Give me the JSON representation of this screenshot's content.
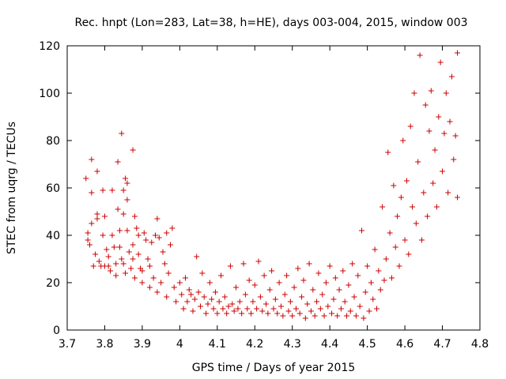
{
  "chart_data": {
    "type": "scatter",
    "title": "Rec. hnpt (Lon=283, Lat=38, h=HE), days 003-004, 2015, window 003",
    "xlabel": "GPS time / Days of year 2015",
    "ylabel": "STEC from uqrg / TECUs",
    "xlim": [
      3.7,
      4.8
    ],
    "ylim": [
      0,
      120
    ],
    "xticks": [
      "3.7",
      "3.8",
      "3.9",
      "4",
      "4.1",
      "4.2",
      "4.3",
      "4.4",
      "4.5",
      "4.6",
      "4.7",
      "4.8"
    ],
    "yticks": [
      "0",
      "20",
      "40",
      "60",
      "80",
      "100",
      "120"
    ],
    "grid": false,
    "legend": "none",
    "marker": "plus",
    "color": "#cc0000",
    "series": [
      {
        "points": [
          [
            3.75,
            64
          ],
          [
            3.755,
            41
          ],
          [
            3.755,
            38
          ],
          [
            3.76,
            36
          ],
          [
            3.765,
            45
          ],
          [
            3.765,
            72
          ],
          [
            3.765,
            58
          ],
          [
            3.77,
            27
          ],
          [
            3.775,
            32
          ],
          [
            3.78,
            49
          ],
          [
            3.78,
            47
          ],
          [
            3.78,
            67
          ],
          [
            3.785,
            29
          ],
          [
            3.79,
            27
          ],
          [
            3.795,
            59
          ],
          [
            3.795,
            40
          ],
          [
            3.8,
            27
          ],
          [
            3.8,
            48
          ],
          [
            3.805,
            34
          ],
          [
            3.81,
            31
          ],
          [
            3.81,
            27
          ],
          [
            3.815,
            25
          ],
          [
            3.82,
            59
          ],
          [
            3.82,
            40
          ],
          [
            3.825,
            35
          ],
          [
            3.83,
            28
          ],
          [
            3.83,
            23
          ],
          [
            3.835,
            71
          ],
          [
            3.835,
            51
          ],
          [
            3.84,
            42
          ],
          [
            3.84,
            35
          ],
          [
            3.845,
            83
          ],
          [
            3.845,
            30
          ],
          [
            3.85,
            59
          ],
          [
            3.85,
            28
          ],
          [
            3.85,
            49
          ],
          [
            3.855,
            64
          ],
          [
            3.855,
            24
          ],
          [
            3.86,
            62
          ],
          [
            3.86,
            55
          ],
          [
            3.86,
            42
          ],
          [
            3.865,
            33
          ],
          [
            3.87,
            26
          ],
          [
            3.875,
            76
          ],
          [
            3.875,
            36
          ],
          [
            3.875,
            30
          ],
          [
            3.88,
            48
          ],
          [
            3.88,
            22
          ],
          [
            3.885,
            43
          ],
          [
            3.89,
            40
          ],
          [
            3.89,
            32
          ],
          [
            3.895,
            26
          ],
          [
            3.9,
            20
          ],
          [
            3.9,
            25
          ],
          [
            3.905,
            41
          ],
          [
            3.91,
            38
          ],
          [
            3.915,
            30
          ],
          [
            3.92,
            27
          ],
          [
            3.92,
            18
          ],
          [
            3.925,
            37
          ],
          [
            3.93,
            22
          ],
          [
            3.935,
            40
          ],
          [
            3.94,
            47
          ],
          [
            3.94,
            16
          ],
          [
            3.945,
            39
          ],
          [
            3.95,
            20
          ],
          [
            3.955,
            33
          ],
          [
            3.96,
            28
          ],
          [
            3.965,
            41
          ],
          [
            3.965,
            14
          ],
          [
            3.97,
            24
          ],
          [
            3.975,
            36
          ],
          [
            3.98,
            43
          ],
          [
            3.985,
            18
          ],
          [
            3.99,
            12
          ],
          [
            4.0,
            20
          ],
          [
            4.005,
            15
          ],
          [
            4.01,
            9
          ],
          [
            4.015,
            22
          ],
          [
            4.02,
            12
          ],
          [
            4.025,
            17
          ],
          [
            4.03,
            15
          ],
          [
            4.035,
            8
          ],
          [
            4.04,
            13
          ],
          [
            4.045,
            31
          ],
          [
            4.05,
            16
          ],
          [
            4.055,
            10
          ],
          [
            4.06,
            24
          ],
          [
            4.065,
            14
          ],
          [
            4.07,
            7
          ],
          [
            4.075,
            11
          ],
          [
            4.08,
            20
          ],
          [
            4.085,
            13
          ],
          [
            4.09,
            9
          ],
          [
            4.095,
            16
          ],
          [
            4.1,
            7
          ],
          [
            4.105,
            12
          ],
          [
            4.11,
            23
          ],
          [
            4.115,
            9
          ],
          [
            4.12,
            14
          ],
          [
            4.125,
            7
          ],
          [
            4.13,
            10
          ],
          [
            4.135,
            27
          ],
          [
            4.14,
            11
          ],
          [
            4.145,
            8
          ],
          [
            4.15,
            18
          ],
          [
            4.155,
            9
          ],
          [
            4.16,
            12
          ],
          [
            4.165,
            7
          ],
          [
            4.17,
            28
          ],
          [
            4.175,
            15
          ],
          [
            4.18,
            9
          ],
          [
            4.185,
            21
          ],
          [
            4.19,
            7
          ],
          [
            4.195,
            12
          ],
          [
            4.2,
            19
          ],
          [
            4.205,
            9
          ],
          [
            4.21,
            29
          ],
          [
            4.215,
            14
          ],
          [
            4.22,
            8
          ],
          [
            4.225,
            23
          ],
          [
            4.23,
            11
          ],
          [
            4.235,
            7
          ],
          [
            4.24,
            17
          ],
          [
            4.245,
            25
          ],
          [
            4.25,
            9
          ],
          [
            4.255,
            13
          ],
          [
            4.26,
            7
          ],
          [
            4.265,
            20
          ],
          [
            4.27,
            10
          ],
          [
            4.275,
            6
          ],
          [
            4.28,
            15
          ],
          [
            4.285,
            23
          ],
          [
            4.29,
            8
          ],
          [
            4.295,
            12
          ],
          [
            4.3,
            6
          ],
          [
            4.305,
            18
          ],
          [
            4.31,
            9
          ],
          [
            4.315,
            26
          ],
          [
            4.32,
            7
          ],
          [
            4.325,
            14
          ],
          [
            4.33,
            21
          ],
          [
            4.335,
            5
          ],
          [
            4.34,
            11
          ],
          [
            4.345,
            28
          ],
          [
            4.35,
            8
          ],
          [
            4.355,
            17
          ],
          [
            4.36,
            6
          ],
          [
            4.365,
            12
          ],
          [
            4.37,
            24
          ],
          [
            4.375,
            9
          ],
          [
            4.38,
            15
          ],
          [
            4.385,
            6
          ],
          [
            4.39,
            20
          ],
          [
            4.395,
            10
          ],
          [
            4.4,
            27
          ],
          [
            4.405,
            7
          ],
          [
            4.41,
            13
          ],
          [
            4.415,
            22
          ],
          [
            4.42,
            6
          ],
          [
            4.425,
            17
          ],
          [
            4.43,
            9
          ],
          [
            4.435,
            25
          ],
          [
            4.44,
            12
          ],
          [
            4.445,
            6
          ],
          [
            4.45,
            19
          ],
          [
            4.455,
            8
          ],
          [
            4.46,
            28
          ],
          [
            4.465,
            14
          ],
          [
            4.47,
            6
          ],
          [
            4.475,
            23
          ],
          [
            4.48,
            10
          ],
          [
            4.485,
            42
          ],
          [
            4.49,
            5
          ],
          [
            4.495,
            16
          ],
          [
            4.5,
            27
          ],
          [
            4.505,
            8
          ],
          [
            4.51,
            20
          ],
          [
            4.515,
            13
          ],
          [
            4.52,
            34
          ],
          [
            4.525,
            9
          ],
          [
            4.53,
            25
          ],
          [
            4.535,
            17
          ],
          [
            4.54,
            52
          ],
          [
            4.545,
            21
          ],
          [
            4.55,
            30
          ],
          [
            4.555,
            75
          ],
          [
            4.56,
            41
          ],
          [
            4.565,
            22
          ],
          [
            4.57,
            61
          ],
          [
            4.575,
            35
          ],
          [
            4.58,
            48
          ],
          [
            4.585,
            27
          ],
          [
            4.59,
            56
          ],
          [
            4.595,
            80
          ],
          [
            4.6,
            38
          ],
          [
            4.605,
            63
          ],
          [
            4.61,
            32
          ],
          [
            4.615,
            86
          ],
          [
            4.62,
            52
          ],
          [
            4.625,
            100
          ],
          [
            4.63,
            45
          ],
          [
            4.635,
            71
          ],
          [
            4.64,
            116
          ],
          [
            4.645,
            38
          ],
          [
            4.65,
            58
          ],
          [
            4.655,
            95
          ],
          [
            4.66,
            48
          ],
          [
            4.665,
            84
          ],
          [
            4.67,
            101
          ],
          [
            4.675,
            62
          ],
          [
            4.68,
            76
          ],
          [
            4.685,
            52
          ],
          [
            4.69,
            90
          ],
          [
            4.695,
            113
          ],
          [
            4.7,
            67
          ],
          [
            4.705,
            83
          ],
          [
            4.71,
            100
          ],
          [
            4.715,
            58
          ],
          [
            4.72,
            88
          ],
          [
            4.725,
            107
          ],
          [
            4.73,
            72
          ],
          [
            4.735,
            82
          ],
          [
            4.74,
            117
          ],
          [
            4.74,
            56
          ]
        ]
      }
    ]
  }
}
